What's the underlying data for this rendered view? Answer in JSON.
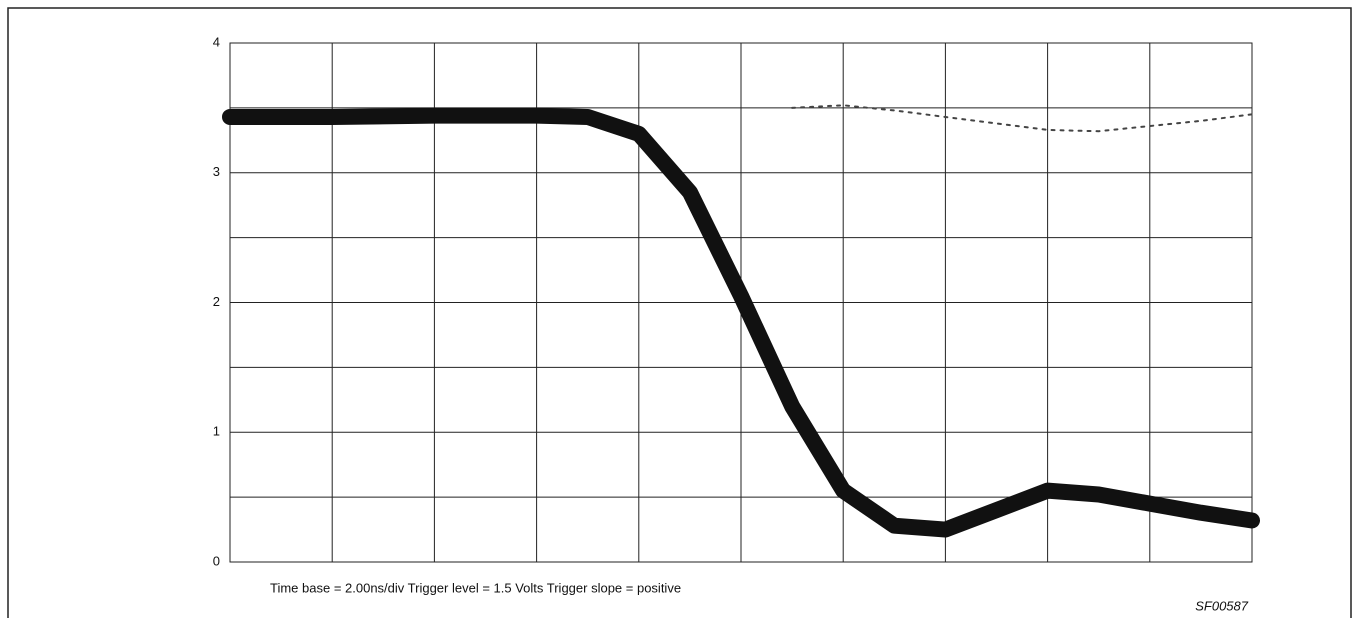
{
  "chart_data": {
    "type": "line",
    "caption": "Time base = 2.00ns/div  Trigger level = 1.5 Volts  Trigger slope = positive",
    "figure_id": "SF00587",
    "x": [
      0,
      2,
      4,
      6,
      7,
      8,
      9,
      10,
      11,
      12,
      13,
      14,
      15,
      16,
      17,
      18,
      19,
      20
    ],
    "xlim": [
      0,
      20
    ],
    "ylim": [
      0,
      4
    ],
    "yticks": [
      0,
      1,
      2,
      3,
      4
    ],
    "grid": true,
    "series": [
      {
        "color": "#111111",
        "values": [
          3.43,
          3.43,
          3.44,
          3.44,
          3.43,
          3.3,
          2.85,
          2.05,
          1.2,
          0.55,
          0.28,
          0.25,
          0.4,
          0.55,
          0.52,
          0.45,
          0.38,
          0.32
        ]
      },
      {
        "color": "#444444",
        "values": [
          null,
          null,
          null,
          null,
          null,
          null,
          null,
          null,
          3.5,
          3.52,
          3.48,
          3.43,
          3.38,
          3.33,
          3.32,
          3.36,
          3.4,
          3.45
        ]
      }
    ]
  }
}
